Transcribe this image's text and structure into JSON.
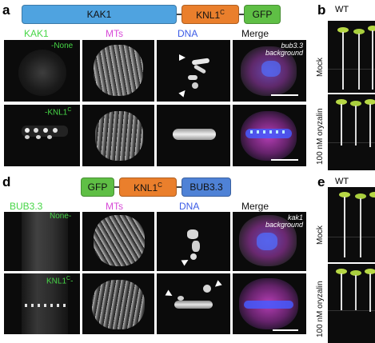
{
  "panel_letters": {
    "a": "a",
    "b": "b",
    "d": "d",
    "e": "e"
  },
  "construct_a": {
    "kak1": "KAK1",
    "knl1c": "KNL1",
    "knl1c_sup": "C",
    "gfp": "GFP"
  },
  "construct_d": {
    "gfp": "GFP",
    "knl1c": "KNL1",
    "knl1c_sup": "C",
    "bub33": "BUB3.3"
  },
  "panel_a": {
    "col_labels": [
      "KAK1",
      "MTs",
      "DNA",
      "Merge"
    ],
    "row1_label": "-None",
    "row2_label": "-KNL1",
    "row2_label_sup": "C",
    "background_line1": "bub3.3",
    "background_line2": "background"
  },
  "panel_d": {
    "col_labels": [
      "BUB3.3",
      "MTs",
      "DNA",
      "Merge"
    ],
    "row1_label": "None-",
    "row2_label": "KNL1",
    "row2_label_sup": "C",
    "row2_label_tail": "-",
    "background_line1": "kak1",
    "background_line2": "background"
  },
  "panel_b": {
    "genotype": "WT",
    "row1": "Mock",
    "row2": "100 nM oryzalin"
  },
  "panel_e": {
    "genotype": "WT",
    "row1": "Mock",
    "row2": "100 nM oryzalin"
  },
  "colors": {
    "green": "#46d646",
    "magenta": "#d84ad8",
    "blue": "#3b5be6",
    "kak1_box": "#4fa3e0",
    "knl1_box": "#ea7f2c",
    "gfp_box": "#5fbf45",
    "bub_box": "#4f82d6"
  }
}
